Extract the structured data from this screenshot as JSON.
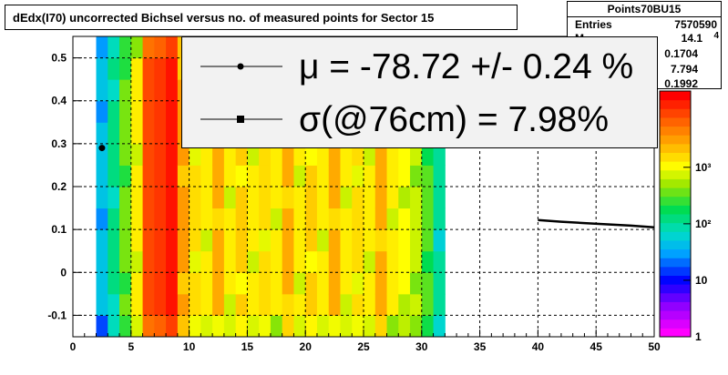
{
  "title": "dEdx(I70) uncorrected Bichsel versus no. of measured points for Sector 15",
  "stats": {
    "name": "Points70BU15",
    "rows": [
      {
        "label": "Entries",
        "value": "7570590"
      },
      {
        "label": "M",
        "value": "14.1"
      },
      {
        "label": "",
        "value": "0.1704"
      },
      {
        "label": "",
        "value": "7.794"
      },
      {
        "label": "",
        "value": "0.1992"
      }
    ],
    "edge_fragment": "4"
  },
  "legend": [
    {
      "marker": "circle",
      "text": "μ  = -78.72 +/-  0.24 %"
    },
    {
      "marker": "square",
      "text": "σ(@76cm) =  7.98%"
    }
  ],
  "colors": {
    "grid": "#000000",
    "fit_line": "#000000",
    "legend_bg": "#f2f2f2"
  },
  "chart_data": {
    "type": "heatmap",
    "xlim": [
      0,
      50
    ],
    "ylim": [
      -0.15,
      0.55
    ],
    "x_ticks": [
      0,
      5,
      10,
      15,
      20,
      25,
      30,
      35,
      40,
      45,
      50
    ],
    "y_ticks": [
      -0.1,
      0,
      0.1,
      0.2,
      0.3,
      0.4,
      0.5
    ],
    "y_tick_labels": [
      "-0.1",
      "0",
      "0.1",
      "0.2",
      "0.3",
      "0.4",
      "0.5"
    ],
    "grid": true,
    "colorbar": {
      "scale": "log",
      "ticks": [
        1,
        10,
        100,
        1000
      ],
      "tick_labels": [
        "1",
        "10",
        "10²",
        "10³"
      ]
    },
    "column_levels": [
      {
        "x": [
          2,
          3
        ],
        "level": 0.38
      },
      {
        "x": [
          3,
          4
        ],
        "level": 0.48
      },
      {
        "x": [
          4,
          5
        ],
        "level": 0.6
      },
      {
        "x": [
          5,
          6
        ],
        "level": 0.72
      },
      {
        "x": [
          6,
          7
        ],
        "level": 0.92
      },
      {
        "x": [
          7,
          8
        ],
        "level": 0.94
      },
      {
        "x": [
          8,
          9
        ],
        "level": 0.98
      },
      {
        "x": [
          9,
          10
        ],
        "level": 0.82
      },
      {
        "x": [
          10,
          11
        ],
        "level": 0.74
      },
      {
        "x": [
          11,
          12
        ],
        "level": 0.72
      },
      {
        "x": [
          12,
          13
        ],
        "level": 0.8
      },
      {
        "x": [
          13,
          14
        ],
        "level": 0.72
      },
      {
        "x": [
          14,
          15
        ],
        "level": 0.76
      },
      {
        "x": [
          15,
          16
        ],
        "level": 0.72
      },
      {
        "x": [
          16,
          17
        ],
        "level": 0.74
      },
      {
        "x": [
          17,
          18
        ],
        "level": 0.72
      },
      {
        "x": [
          18,
          19
        ],
        "level": 0.8
      },
      {
        "x": [
          19,
          20
        ],
        "level": 0.72
      },
      {
        "x": [
          20,
          21
        ],
        "level": 0.76
      },
      {
        "x": [
          21,
          22
        ],
        "level": 0.72
      },
      {
        "x": [
          22,
          23
        ],
        "level": 0.8
      },
      {
        "x": [
          23,
          24
        ],
        "level": 0.72
      },
      {
        "x": [
          24,
          25
        ],
        "level": 0.74
      },
      {
        "x": [
          25,
          26
        ],
        "level": 0.72
      },
      {
        "x": [
          26,
          27
        ],
        "level": 0.8
      },
      {
        "x": [
          27,
          28
        ],
        "level": 0.72
      },
      {
        "x": [
          28,
          29
        ],
        "level": 0.7
      },
      {
        "x": [
          29,
          30
        ],
        "level": 0.66
      },
      {
        "x": [
          30,
          31
        ],
        "level": 0.58
      },
      {
        "x": [
          31,
          32
        ],
        "level": 0.46
      }
    ],
    "series": [
      {
        "marker": "circle",
        "x": [
          2.5
        ],
        "y": [
          0.29
        ]
      },
      {
        "marker": "line",
        "x": [
          40,
          42,
          44,
          46,
          48,
          50
        ],
        "y": [
          0.122,
          0.118,
          0.115,
          0.112,
          0.109,
          0.105
        ]
      }
    ]
  }
}
